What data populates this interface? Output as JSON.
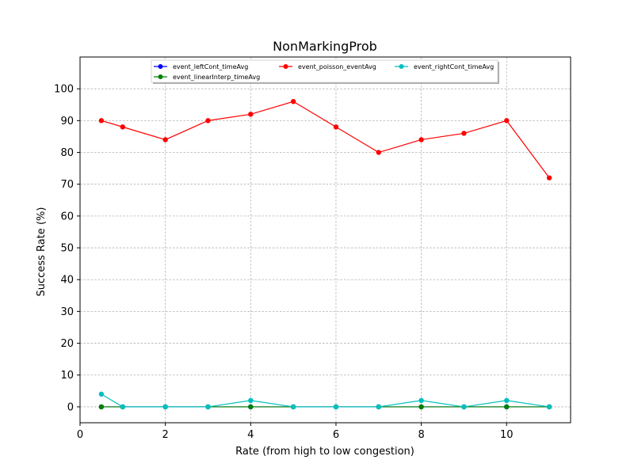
{
  "chart_data": {
    "type": "line",
    "title": "NonMarkingProb",
    "xlabel": "Rate (from high to low congestion)",
    "ylabel": "Success Rate (%)",
    "xlim": [
      0,
      11.5
    ],
    "ylim": [
      -5,
      110
    ],
    "xticks": [
      0,
      2,
      4,
      6,
      8,
      10
    ],
    "yticks": [
      0,
      10,
      20,
      30,
      40,
      50,
      60,
      70,
      80,
      90,
      100
    ],
    "grid": true,
    "legend_position": "top-center",
    "x": [
      0.5,
      1,
      2,
      3,
      4,
      5,
      6,
      7,
      8,
      9,
      10,
      11
    ],
    "series": [
      {
        "name": "event_leftCont_timeAvg",
        "color": "#0000ff",
        "values": [
          0,
          0,
          0,
          0,
          0,
          0,
          0,
          0,
          0,
          0,
          0,
          0
        ]
      },
      {
        "name": "event_linearInterp_timeAvg",
        "color": "#008000",
        "values": [
          0,
          0,
          0,
          0,
          0,
          0,
          0,
          0,
          0,
          0,
          0,
          0
        ]
      },
      {
        "name": "event_poisson_eventAvg",
        "color": "#ff0000",
        "values": [
          90,
          88,
          84,
          90,
          92,
          96,
          88,
          80,
          84,
          86,
          90,
          72
        ]
      },
      {
        "name": "event_rightCont_timeAvg",
        "color": "#00bfbf",
        "values": [
          4,
          0,
          0,
          0,
          2,
          0,
          0,
          0,
          2,
          0,
          2,
          0
        ]
      }
    ]
  }
}
